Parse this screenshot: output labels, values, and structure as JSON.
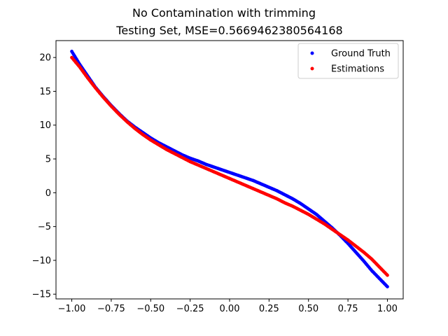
{
  "chart_data": {
    "type": "scatter",
    "title": "No Contamination with trimming",
    "subtitle": "Testing Set, MSE=0.5669462380564168",
    "xlabel": "",
    "ylabel": "",
    "xlim": [
      -1.1,
      1.1
    ],
    "ylim": [
      -15.7,
      22.5
    ],
    "xticks": [
      -1.0,
      -0.75,
      -0.5,
      -0.25,
      0.0,
      0.25,
      0.5,
      0.75,
      1.0
    ],
    "xtick_labels": [
      "−1.00",
      "−0.75",
      "−0.50",
      "−0.25",
      "0.00",
      "0.25",
      "0.50",
      "0.75",
      "1.00"
    ],
    "yticks": [
      -15,
      -10,
      -5,
      0,
      5,
      10,
      15,
      20
    ],
    "ytick_labels": [
      "−15",
      "−10",
      "−5",
      "0",
      "5",
      "10",
      "15",
      "20"
    ],
    "grid": false,
    "legend_position": "top-right",
    "series": [
      {
        "name": "Ground Truth",
        "color": "#0000ff",
        "x": [
          -1.0,
          -0.95,
          -0.9,
          -0.85,
          -0.8,
          -0.75,
          -0.7,
          -0.65,
          -0.6,
          -0.55,
          -0.5,
          -0.45,
          -0.4,
          -0.35,
          -0.3,
          -0.25,
          -0.2,
          -0.15,
          -0.1,
          -0.05,
          0.0,
          0.05,
          0.1,
          0.15,
          0.2,
          0.25,
          0.3,
          0.35,
          0.4,
          0.45,
          0.5,
          0.55,
          0.6,
          0.65,
          0.7,
          0.75,
          0.8,
          0.85,
          0.9,
          0.95,
          1.0
        ],
        "y": [
          20.9,
          19.0,
          17.3,
          15.6,
          14.2,
          12.9,
          11.7,
          10.6,
          9.7,
          8.9,
          8.1,
          7.4,
          6.8,
          6.2,
          5.6,
          5.1,
          4.7,
          4.2,
          3.8,
          3.4,
          3.0,
          2.6,
          2.2,
          1.8,
          1.3,
          0.8,
          0.3,
          -0.3,
          -0.9,
          -1.6,
          -2.4,
          -3.2,
          -4.2,
          -5.2,
          -6.3,
          -7.5,
          -8.8,
          -10.1,
          -11.5,
          -12.7,
          -13.9
        ]
      },
      {
        "name": "Estimations",
        "color": "#ff0000",
        "x": [
          -1.0,
          -0.95,
          -0.9,
          -0.85,
          -0.8,
          -0.75,
          -0.7,
          -0.65,
          -0.6,
          -0.55,
          -0.5,
          -0.45,
          -0.4,
          -0.35,
          -0.3,
          -0.25,
          -0.2,
          -0.15,
          -0.1,
          -0.05,
          0.0,
          0.05,
          0.1,
          0.15,
          0.2,
          0.25,
          0.3,
          0.35,
          0.4,
          0.45,
          0.5,
          0.55,
          0.6,
          0.65,
          0.7,
          0.75,
          0.8,
          0.85,
          0.9,
          0.95,
          1.0
        ],
        "y": [
          20.0,
          18.6,
          17.0,
          15.5,
          14.1,
          12.8,
          11.6,
          10.5,
          9.5,
          8.6,
          7.8,
          7.1,
          6.4,
          5.8,
          5.2,
          4.6,
          4.1,
          3.6,
          3.1,
          2.6,
          2.1,
          1.6,
          1.1,
          0.6,
          0.1,
          -0.4,
          -0.9,
          -1.5,
          -2.0,
          -2.6,
          -3.2,
          -3.9,
          -4.6,
          -5.4,
          -6.2,
          -7.0,
          -7.9,
          -8.8,
          -9.8,
          -11.0,
          -12.2
        ]
      }
    ]
  }
}
